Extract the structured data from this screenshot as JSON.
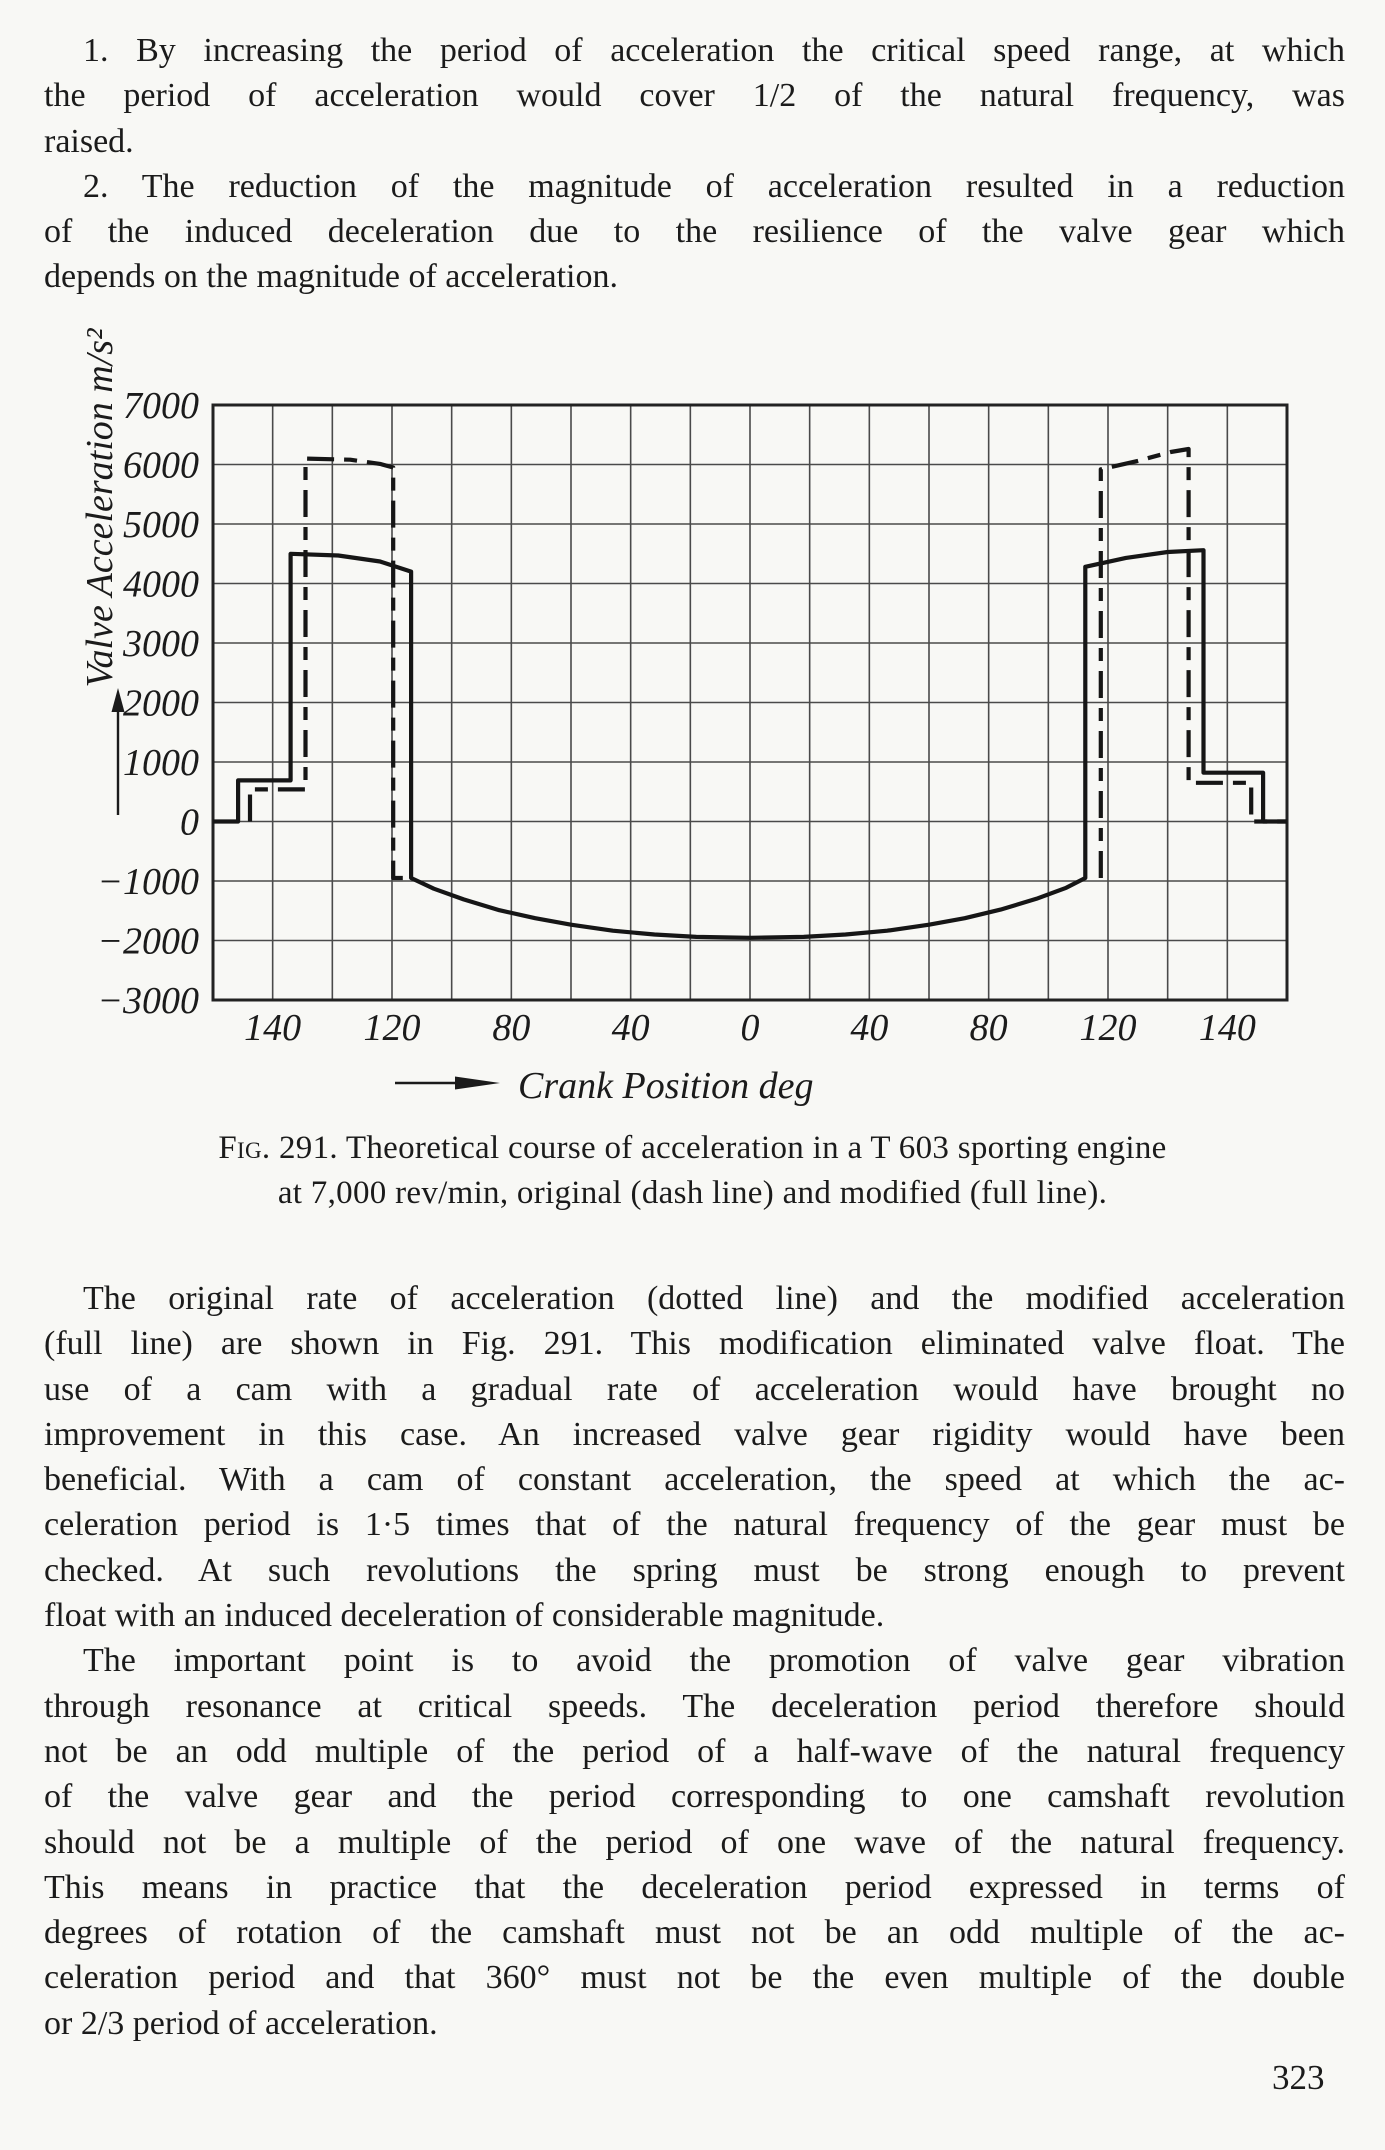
{
  "page": {
    "number": "323",
    "ink_color": "#1b1b1b",
    "paper_color": "#f8f8f5"
  },
  "intro_paragraphs": [
    {
      "lines": [
        "1.  By increasing the period of acceleration the critical speed range, at which",
        "the period of acceleration would cover 1/2 of the natural frequency, was",
        "raised."
      ]
    },
    {
      "lines": [
        "2.  The reduction of the magnitude of acceleration resulted in a reduction",
        "of the induced deceleration due to the resilience of the valve gear which",
        "depends on the magnitude of acceleration."
      ]
    }
  ],
  "figure": {
    "caption": {
      "fig_label": "Fig. 291.",
      "line1_rest": " Theoretical course of acceleration in a T 603 sporting engine",
      "line2": "at 7,000 rev/min, original (dash line) and modified (full line)."
    }
  },
  "chart_data": {
    "type": "line",
    "title": "Fig. 291. Theoretical course of acceleration in a T 603 sporting engine at 7,000 rev/min, original (dash line) and modified (full line).",
    "xlabel": "Crank Position deg",
    "ylabel": "Valve Acceleration m/s²",
    "ylim": [
      -3000,
      7000
    ],
    "y_tick_step": 1000,
    "y_ticks": [
      "7000",
      "6000",
      "5000",
      "4000",
      "3000",
      "2000",
      "1000",
      "0",
      "−1000",
      "−2000",
      "−3000"
    ],
    "x_cells": 18,
    "x_tick_labels": [
      "140",
      "120",
      "80",
      "40",
      "0",
      "40",
      "80",
      "120",
      "140"
    ],
    "x_tick_cell_positions": [
      1,
      3,
      5,
      7,
      9,
      11,
      13,
      15,
      17
    ],
    "x_tick_degrees": [
      -140,
      -120,
      -80,
      -40,
      0,
      40,
      80,
      120,
      140
    ],
    "x_axis_note": "labels printed unsigned, mirrored about centre 0; gridline spacing uniform on paper (every 2nd gridline labelled)",
    "grid": true,
    "legend_position": "none (line styles identified in caption)",
    "series": [
      {
        "id": "modified-full",
        "name": "modified (full line)",
        "line_style": "solid",
        "paths": [
          [
            [
              0,
              0
            ],
            [
              0.42,
              0
            ],
            [
              0.42,
              690
            ],
            [
              1.3,
              690
            ],
            [
              1.3,
              4500
            ],
            [
              2.1,
              4470
            ],
            [
              2.8,
              4370
            ],
            [
              3.32,
              4200
            ],
            [
              3.32,
              -950
            ],
            [
              3.7,
              -1130
            ],
            [
              4.2,
              -1310
            ],
            [
              4.8,
              -1490
            ],
            [
              5.4,
              -1625
            ],
            [
              6.0,
              -1735
            ],
            [
              6.7,
              -1835
            ],
            [
              7.4,
              -1900
            ],
            [
              8.1,
              -1940
            ],
            [
              9.0,
              -1955
            ],
            [
              9.9,
              -1940
            ],
            [
              10.6,
              -1900
            ],
            [
              11.3,
              -1835
            ],
            [
              12.0,
              -1735
            ],
            [
              12.6,
              -1625
            ],
            [
              13.2,
              -1480
            ],
            [
              13.8,
              -1300
            ],
            [
              14.3,
              -1115
            ],
            [
              14.62,
              -950
            ],
            [
              14.62,
              4280
            ],
            [
              15.3,
              4430
            ],
            [
              16.0,
              4530
            ],
            [
              16.6,
              4560
            ],
            [
              16.6,
              820
            ],
            [
              17.6,
              820
            ],
            [
              17.6,
              0
            ],
            [
              18,
              0
            ]
          ]
        ]
      },
      {
        "id": "original-dashed",
        "name": "original (dash line)",
        "line_style": "dashed",
        "paths": [
          [
            [
              0.62,
              0
            ],
            [
              0.62,
              540
            ],
            [
              1.55,
              540
            ],
            [
              1.55,
              6100
            ],
            [
              2.3,
              6080
            ],
            [
              2.8,
              6010
            ],
            [
              3.02,
              5950
            ],
            [
              3.02,
              -950
            ],
            [
              3.32,
              -950
            ]
          ],
          [
            [
              14.88,
              -950
            ],
            [
              14.88,
              5920
            ],
            [
              15.5,
              6060
            ],
            [
              16.05,
              6210
            ],
            [
              16.35,
              6260
            ],
            [
              16.35,
              650
            ],
            [
              17.4,
              650
            ],
            [
              17.4,
              0
            ],
            [
              18,
              0
            ]
          ]
        ]
      }
    ],
    "annotations": {
      "peak_original_left": 6100,
      "peak_original_right": 6260,
      "peak_modified_left": 4500,
      "peak_modified_right": 4560,
      "deceleration_minimum": -1955
    }
  },
  "body_paragraphs": [
    {
      "lines": [
        "The original rate of acceleration (dotted line) and the modified acceleration",
        "(full line) are shown in Fig. 291. This modification eliminated valve float. The",
        "use of a cam with a gradual rate of acceleration would have brought no",
        "improvement in this case. An increased valve gear rigidity would have been",
        "beneficial. With a cam of constant acceleration, the speed at which the ac-",
        "celeration period is 1·5 times that of the natural frequency of the gear must be",
        "checked. At such revolutions the spring must be strong enough to prevent",
        "float with an induced deceleration of considerable magnitude."
      ]
    },
    {
      "lines": [
        "The important point is to avoid the promotion of valve gear vibration",
        "through resonance at critical speeds. The deceleration period therefore should",
        "not be an odd multiple of the period of a half-wave of the natural frequency",
        "of the valve gear and the period corresponding to one camshaft revolution",
        "should not be a multiple of the period of one wave of the natural frequency.",
        "This means in practice that the deceleration period expressed in terms of",
        "degrees of rotation of the camshaft must not be an odd multiple of the ac-",
        "celeration period and that 360° must not be the even multiple of the double",
        "or 2/3 period of acceleration."
      ]
    }
  ]
}
